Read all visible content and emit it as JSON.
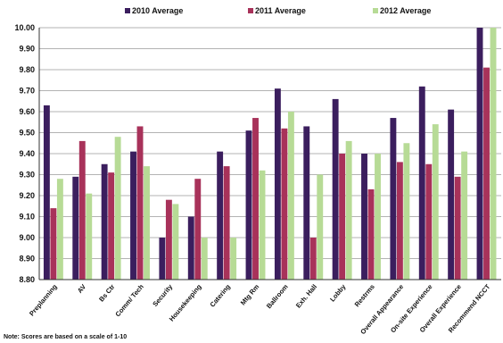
{
  "chart_data": {
    "type": "bar",
    "categories": [
      "Preplanning",
      "AV",
      "Bs Ctr",
      "Comm/ Tech",
      "Security",
      "Housekeeping",
      "Catering",
      "Mtg Rm",
      "Ballroom",
      "Exh. Hall",
      "Lobby",
      "Restrms",
      "Overall Appearance",
      "On-site Experience",
      "Overall Experience",
      "Recommend NCCT"
    ],
    "series": [
      {
        "name": "2010 Average",
        "color": "#3b1e5e",
        "values": [
          9.63,
          9.29,
          9.35,
          9.41,
          9.0,
          9.1,
          9.41,
          9.51,
          9.71,
          9.53,
          9.66,
          9.4,
          9.57,
          9.72,
          9.61,
          10.0
        ]
      },
      {
        "name": "2011 Average",
        "color": "#a8325a",
        "values": [
          9.14,
          9.46,
          9.31,
          9.53,
          9.18,
          9.28,
          9.34,
          9.57,
          9.52,
          9.0,
          9.4,
          9.23,
          9.36,
          9.35,
          9.29,
          9.81
        ]
      },
      {
        "name": "2012 Average",
        "color": "#b7db96",
        "values": [
          9.28,
          9.21,
          9.48,
          9.34,
          9.16,
          9.0,
          9.0,
          9.32,
          9.6,
          9.3,
          9.46,
          9.4,
          9.45,
          9.54,
          9.41,
          10.0
        ]
      }
    ],
    "ylim": [
      8.8,
      10.0
    ],
    "yticks": [
      "10.00",
      "9.90",
      "9.80",
      "9.70",
      "9.60",
      "9.50",
      "9.40",
      "9.30",
      "9.20",
      "9.10",
      "9.00",
      "8.90",
      "8.80"
    ],
    "legend_position": "top",
    "grid": true,
    "note": "Note: Scores are based on a scale of 1-10"
  }
}
